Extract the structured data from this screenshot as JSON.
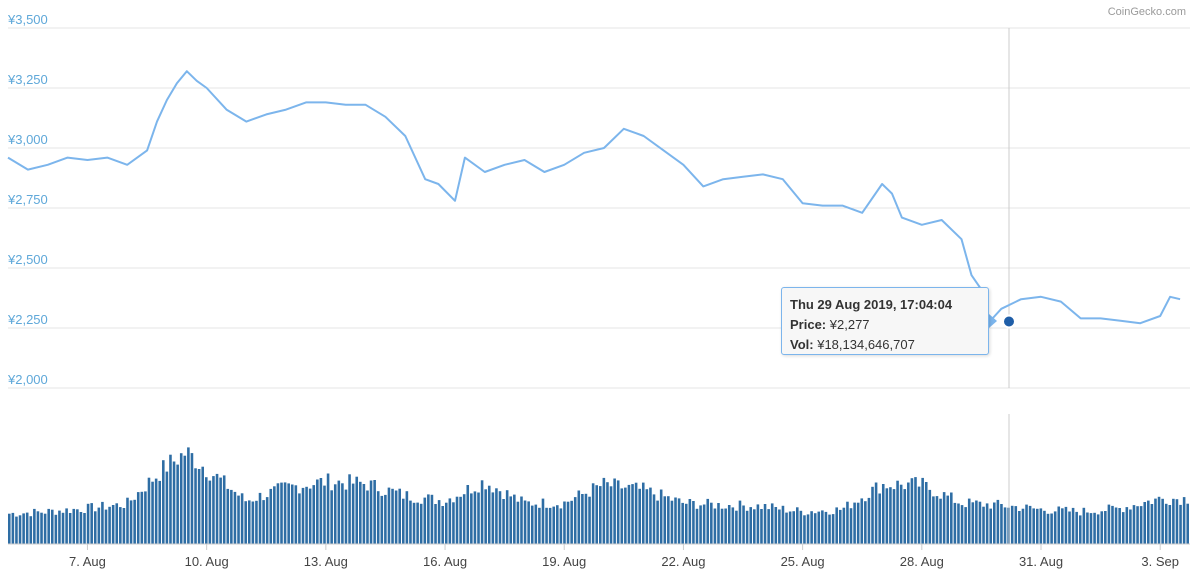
{
  "chart_data": [
    {
      "type": "line",
      "title": "",
      "credit": "CoinGecko.com",
      "ylim": [
        2000,
        3500
      ],
      "yticks": [
        "¥3,500",
        "¥3,250",
        "¥3,000",
        "¥2,750",
        "¥2,500",
        "¥2,250",
        "¥2,000"
      ],
      "ytick_values": [
        3500,
        3250,
        3000,
        2750,
        2500,
        2250,
        2000
      ],
      "grid": true,
      "line_color": "#7cb5ec",
      "x_start": "2019-08-05",
      "x_end": "2019-09-03",
      "xticks": [
        "7. Aug",
        "10. Aug",
        "13. Aug",
        "16. Aug",
        "19. Aug",
        "22. Aug",
        "25. Aug",
        "28. Aug",
        "31. Aug",
        "3. Sep"
      ],
      "xtick_dates": [
        "2019-08-07",
        "2019-08-10",
        "2019-08-13",
        "2019-08-16",
        "2019-08-19",
        "2019-08-22",
        "2019-08-25",
        "2019-08-28",
        "2019-08-31",
        "2019-09-03"
      ],
      "series": [
        {
          "x": [
            "2019-08-05 00:00",
            "2019-08-05 12:00",
            "2019-08-06 00:00",
            "2019-08-06 12:00",
            "2019-08-07 00:00",
            "2019-08-07 12:00",
            "2019-08-08 00:00",
            "2019-08-08 12:00",
            "2019-08-08 18:00",
            "2019-08-09 00:00",
            "2019-08-09 06:00",
            "2019-08-09 12:00",
            "2019-08-09 18:00",
            "2019-08-10 00:00",
            "2019-08-10 12:00",
            "2019-08-11 00:00",
            "2019-08-11 12:00",
            "2019-08-12 00:00",
            "2019-08-12 12:00",
            "2019-08-13 00:00",
            "2019-08-13 12:00",
            "2019-08-14 00:00",
            "2019-08-14 12:00",
            "2019-08-15 00:00",
            "2019-08-15 12:00",
            "2019-08-15 20:00",
            "2019-08-16 06:00",
            "2019-08-16 12:00",
            "2019-08-17 00:00",
            "2019-08-17 12:00",
            "2019-08-18 00:00",
            "2019-08-18 12:00",
            "2019-08-19 00:00",
            "2019-08-19 12:00",
            "2019-08-20 00:00",
            "2019-08-20 12:00",
            "2019-08-21 00:00",
            "2019-08-21 12:00",
            "2019-08-22 00:00",
            "2019-08-22 12:00",
            "2019-08-23 00:00",
            "2019-08-23 12:00",
            "2019-08-24 00:00",
            "2019-08-24 12:00",
            "2019-08-25 00:00",
            "2019-08-25 12:00",
            "2019-08-26 00:00",
            "2019-08-26 12:00",
            "2019-08-27 00:00",
            "2019-08-27 06:00",
            "2019-08-27 12:00",
            "2019-08-28 00:00",
            "2019-08-28 12:00",
            "2019-08-29 00:00",
            "2019-08-29 06:00",
            "2019-08-29 12:00",
            "2019-08-29 17:00",
            "2019-08-30 00:00",
            "2019-08-30 12:00",
            "2019-08-31 00:00",
            "2019-08-31 12:00",
            "2019-09-01 00:00",
            "2019-09-01 12:00",
            "2019-09-02 00:00",
            "2019-09-02 12:00",
            "2019-09-03 00:00",
            "2019-09-03 06:00",
            "2019-09-03 12:00"
          ],
          "y": [
            2960,
            2910,
            2930,
            2960,
            2950,
            2960,
            2930,
            2990,
            3110,
            3200,
            3270,
            3320,
            3280,
            3250,
            3160,
            3110,
            3140,
            3160,
            3190,
            3190,
            3180,
            3180,
            3130,
            3050,
            2870,
            2850,
            2780,
            2960,
            2900,
            2930,
            2950,
            2900,
            2930,
            2980,
            3000,
            3080,
            3050,
            2990,
            2930,
            2840,
            2870,
            2880,
            2890,
            2870,
            2770,
            2760,
            2760,
            2730,
            2850,
            2810,
            2710,
            2680,
            2700,
            2620,
            2470,
            2410,
            2277,
            2330,
            2370,
            2380,
            2360,
            2290,
            2290,
            2280,
            2270,
            2300,
            2380,
            2370
          ]
        }
      ]
    },
    {
      "type": "bar",
      "title": "",
      "bar_color": "#2e6da4",
      "grid": false,
      "y_axis_labels": false,
      "note": "volume series",
      "x": [
        "2019-08-05",
        "2019-08-06",
        "2019-08-07",
        "2019-08-08",
        "2019-08-08 12:00",
        "2019-08-09",
        "2019-08-09 12:00",
        "2019-08-10",
        "2019-08-11",
        "2019-08-12",
        "2019-08-13",
        "2019-08-14",
        "2019-08-15",
        "2019-08-16",
        "2019-08-17",
        "2019-08-18",
        "2019-08-19",
        "2019-08-20",
        "2019-08-21",
        "2019-08-22",
        "2019-08-23",
        "2019-08-24",
        "2019-08-25",
        "2019-08-26",
        "2019-08-27",
        "2019-08-28",
        "2019-08-29",
        "2019-08-30",
        "2019-08-31",
        "2019-09-01",
        "2019-09-02",
        "2019-09-03"
      ],
      "values": [
        0.28,
        0.3,
        0.33,
        0.37,
        0.55,
        0.72,
        0.85,
        0.7,
        0.4,
        0.52,
        0.58,
        0.56,
        0.45,
        0.4,
        0.58,
        0.38,
        0.38,
        0.55,
        0.5,
        0.38,
        0.36,
        0.35,
        0.3,
        0.32,
        0.55,
        0.55,
        0.38,
        0.36,
        0.32,
        0.3,
        0.33,
        0.42
      ]
    }
  ],
  "tooltip": {
    "date": "Thu 29 Aug 2019, 17:04:04",
    "price_label": "Price:",
    "price_value": "¥2,277",
    "vol_label": "Vol:",
    "vol_value": "¥18,134,646,707"
  }
}
